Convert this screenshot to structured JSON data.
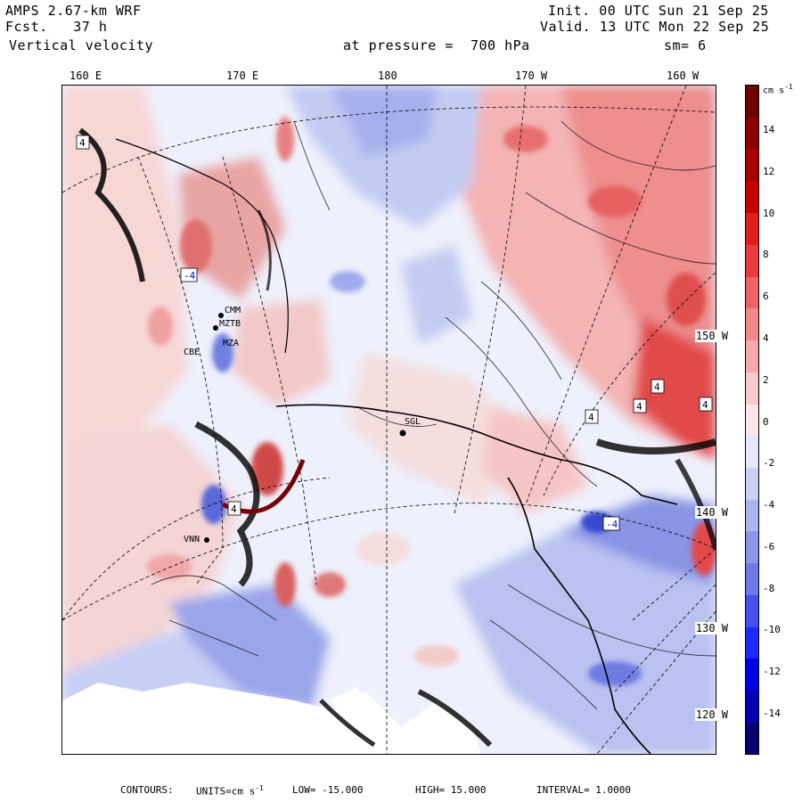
{
  "header": {
    "model": "AMPS 2.67-km WRF",
    "forecast_label": "Fcst.",
    "forecast_value": "37 h",
    "variable": "Vertical velocity",
    "level_label": "at pressure =",
    "level_value": "700 hPa",
    "init_label": "Init.",
    "init_value": "00 UTC Sun 21 Sep 25",
    "valid_label": "Valid.",
    "valid_value": "13 UTC Mon 22 Sep 25",
    "smoothing": "sm= 6"
  },
  "longitude_labels": [
    "160 E",
    "170 E",
    "180",
    "170 W",
    "160 W"
  ],
  "latitude_labels": [
    "150 W",
    "140 W",
    "130 W",
    "120 W"
  ],
  "colorbar": {
    "unit_text": "cm s",
    "unit_exponent": "-1",
    "tick_labels": [
      "14",
      "12",
      "10",
      "8",
      "6",
      "4",
      "2",
      "0",
      "-2",
      "-4",
      "-6",
      "-8",
      "-10",
      "-12",
      "-14"
    ],
    "colors": [
      "#08006e",
      "#0000b4",
      "#0000e6",
      "#1e28ff",
      "#4650f0",
      "#6e78e6",
      "#8c96e6",
      "#aab4ee",
      "#c8d0f4",
      "#e4e8fa",
      "#fae6e6",
      "#f8cccc",
      "#f4aaaa",
      "#f08888",
      "#ee6464",
      "#ea3c3c",
      "#e01e1e",
      "#c80000",
      "#aa0000",
      "#8c0000",
      "#6e0000"
    ]
  },
  "stations": [
    "SGL",
    "CMM",
    "MZTB",
    "MZA",
    "CBE",
    "VNN"
  ],
  "contour_markers": [
    "4",
    "4",
    "4",
    "4",
    "-4",
    "-4",
    "4",
    "4"
  ],
  "footer": {
    "contours_label": "CONTOURS:",
    "units_text": "UNITS=cm s",
    "units_exponent": "-1",
    "low_label": "LOW=",
    "low_value": "-15.000",
    "high_label": "HIGH=",
    "high_value": "15.000",
    "interval_label": "INTERVAL=",
    "interval_value": "1.0000"
  }
}
